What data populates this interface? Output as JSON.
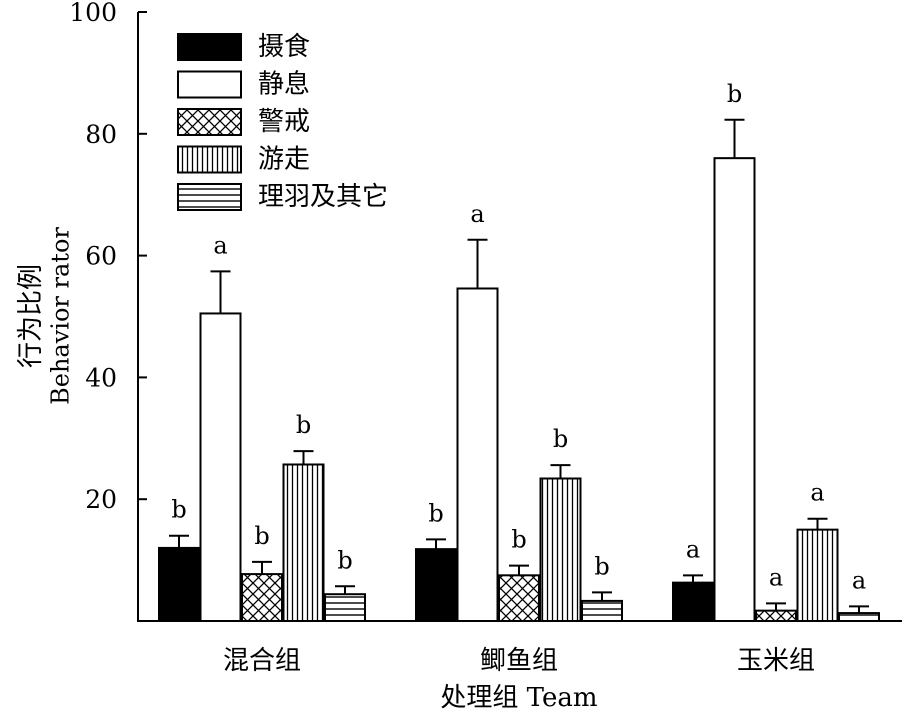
{
  "chart_data": {
    "type": "bar",
    "xlabel": "处理组 Team",
    "ylabel_cn": "行为比例",
    "ylabel_en": "Behavior rator",
    "ylim": [
      0,
      100
    ],
    "yticks": [
      20,
      40,
      60,
      80,
      100
    ],
    "categories": [
      "混合组",
      "鲫鱼组",
      "玉米组"
    ],
    "legend_position": "top-left",
    "series": [
      {
        "name": "摄食",
        "pattern": "solid",
        "values": [
          12.0,
          11.8,
          6.3
        ],
        "errors": [
          2.0,
          1.6,
          1.2
        ],
        "sig": [
          "b",
          "b",
          "a"
        ]
      },
      {
        "name": "静息",
        "pattern": "open",
        "values": [
          50.5,
          54.6,
          76.0
        ],
        "errors": [
          6.9,
          8.0,
          6.3
        ],
        "sig": [
          "a",
          "a",
          "b"
        ]
      },
      {
        "name": "警戒",
        "pattern": "crosshatch",
        "values": [
          7.7,
          7.5,
          1.7
        ],
        "errors": [
          2.0,
          1.6,
          1.2
        ],
        "sig": [
          "b",
          "b",
          "a"
        ]
      },
      {
        "name": "游走",
        "pattern": "vertical",
        "values": [
          25.7,
          23.4,
          15.0
        ],
        "errors": [
          2.2,
          2.2,
          1.8
        ],
        "sig": [
          "b",
          "b",
          "a"
        ]
      },
      {
        "name": "理羽及其它",
        "pattern": "horizontal",
        "values": [
          4.4,
          3.3,
          1.3
        ],
        "errors": [
          1.3,
          1.4,
          1.1
        ],
        "sig": [
          "b",
          "b",
          "a"
        ]
      }
    ]
  }
}
